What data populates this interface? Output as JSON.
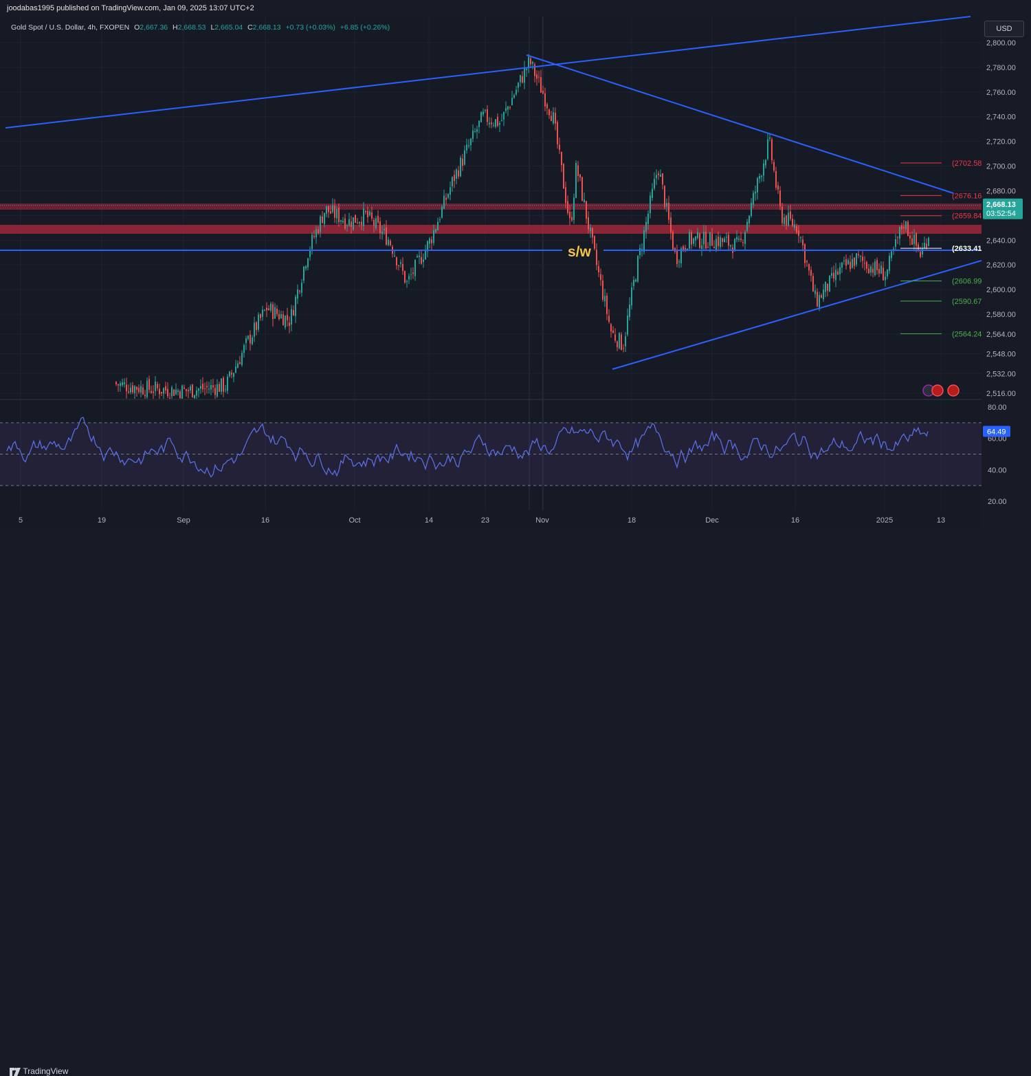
{
  "header": {
    "published": "joodabas1995 published on TradingView.com, Jan 09, 2025 13:07 UTC+2",
    "symbol": "Gold Spot / U.S. Dollar, 4h, FXOPEN",
    "o_label": "O",
    "o_value": "2,667.36",
    "h_label": "H",
    "h_value": "2,668.53",
    "l_label": "L",
    "l_value": "2,665.04",
    "c_label": "C",
    "c_value": "2,668.13",
    "change": "+0.73 (+0.03%)",
    "change2": "+6.85 (+0.26%)"
  },
  "currency_button": "USD",
  "price_badge": {
    "price": "2,668.13",
    "countdown": "03:52:54"
  },
  "rsi_badge": "64.49",
  "footer": {
    "logo_icon": "tradingview-logo-icon",
    "brand": "TradingView"
  },
  "annotation_text": "s/w",
  "colors": {
    "up": "#26a69a",
    "down": "#ef5350",
    "trendline": "#2962ff",
    "rsi_line": "#5b6ee1",
    "zone": "#b2283d",
    "sw_text": "#f5c543"
  },
  "chart_data": [
    {
      "type": "candlestick",
      "title": "Gold Spot / U.S. Dollar, 4h, FXOPEN",
      "ylim": [
        2508,
        2820
      ],
      "y_ticks": [
        2516,
        2532,
        2548,
        2564,
        2580,
        2600,
        2620,
        2640,
        2660,
        2680,
        2700,
        2720,
        2740,
        2760,
        2780,
        2800
      ],
      "y_tick_labels": [
        "2,516.00",
        "2,532.00",
        "2,548.00",
        "2,564.00",
        "2,580.00",
        "2,600.00",
        "2,620.00",
        "2,640.00",
        "2,660.00",
        "2,680.00",
        "2,700.00",
        "2,720.00",
        "2,740.00",
        "2,760.00",
        "2,780.00",
        "2,800.00"
      ],
      "x_tick_labels": [
        "5",
        "19",
        "Sep",
        "16",
        "Oct",
        "14",
        "23",
        "Nov",
        "18",
        "Dec",
        "16",
        "2025",
        "13"
      ],
      "price_path": [
        [
          "Aug 05",
          2525
        ],
        [
          "Aug 12",
          2520
        ],
        [
          "Aug 19",
          2525
        ],
        [
          "Aug 26",
          2520
        ],
        [
          "Sep 02",
          2518
        ],
        [
          "Sep 09",
          2522
        ],
        [
          "Sep 13",
          2560
        ],
        [
          "Sep 16",
          2585
        ],
        [
          "Sep 20",
          2575
        ],
        [
          "Sep 23",
          2630
        ],
        [
          "Sep 26",
          2665
        ],
        [
          "Sep 30",
          2655
        ],
        [
          "Oct 03",
          2660
        ],
        [
          "Oct 07",
          2640
        ],
        [
          "Oct 10",
          2605
        ],
        [
          "Oct 14",
          2640
        ],
        [
          "Oct 18",
          2690
        ],
        [
          "Oct 23",
          2740
        ],
        [
          "Oct 26",
          2735
        ],
        [
          "Oct 31",
          2785
        ],
        [
          "Nov 04",
          2740
        ],
        [
          "Nov 07",
          2650
        ],
        [
          "Nov 08",
          2700
        ],
        [
          "Nov 11",
          2630
        ],
        [
          "Nov 14",
          2565
        ],
        [
          "Nov 16",
          2555
        ],
        [
          "Nov 18",
          2610
        ],
        [
          "Nov 22",
          2700
        ],
        [
          "Nov 25",
          2625
        ],
        [
          "Nov 27",
          2640
        ],
        [
          "Dec 02",
          2640
        ],
        [
          "Dec 06",
          2635
        ],
        [
          "Dec 11",
          2720
        ],
        [
          "Dec 13",
          2660
        ],
        [
          "Dec 16",
          2650
        ],
        [
          "Dec 19",
          2590
        ],
        [
          "Dec 23",
          2615
        ],
        [
          "Dec 26",
          2625
        ],
        [
          "Dec 31",
          2612
        ],
        [
          "Jan 03",
          2655
        ],
        [
          "Jan 06",
          2628
        ],
        [
          "Jan 09",
          2668
        ]
      ],
      "horizontal_levels": [
        {
          "price": 2702.58,
          "label": "(2702.58",
          "color": "#f23645"
        },
        {
          "price": 2676.16,
          "label": "(2676.16",
          "color": "#f23645"
        },
        {
          "price": 2659.84,
          "label": "(2659.84",
          "color": "#f23645"
        },
        {
          "price": 2633.41,
          "label": "(2633.41",
          "color": "#ffffff"
        },
        {
          "price": 2606.99,
          "label": "(2606.99",
          "color": "#4caf50"
        },
        {
          "price": 2590.67,
          "label": "(2590.67",
          "color": "#4caf50"
        },
        {
          "price": 2564.24,
          "label": "(2564.24",
          "color": "#4caf50"
        }
      ],
      "last_price": 2668.13
    },
    {
      "type": "line",
      "name": "RSI",
      "ylim": [
        12,
        86
      ],
      "y_tick_labels": [
        "20.00",
        "40.00",
        "60.00",
        "80.00"
      ],
      "y_ticks": [
        20,
        40,
        60,
        80
      ],
      "bands": [
        30,
        50,
        70
      ],
      "last_value": 64.49
    }
  ]
}
